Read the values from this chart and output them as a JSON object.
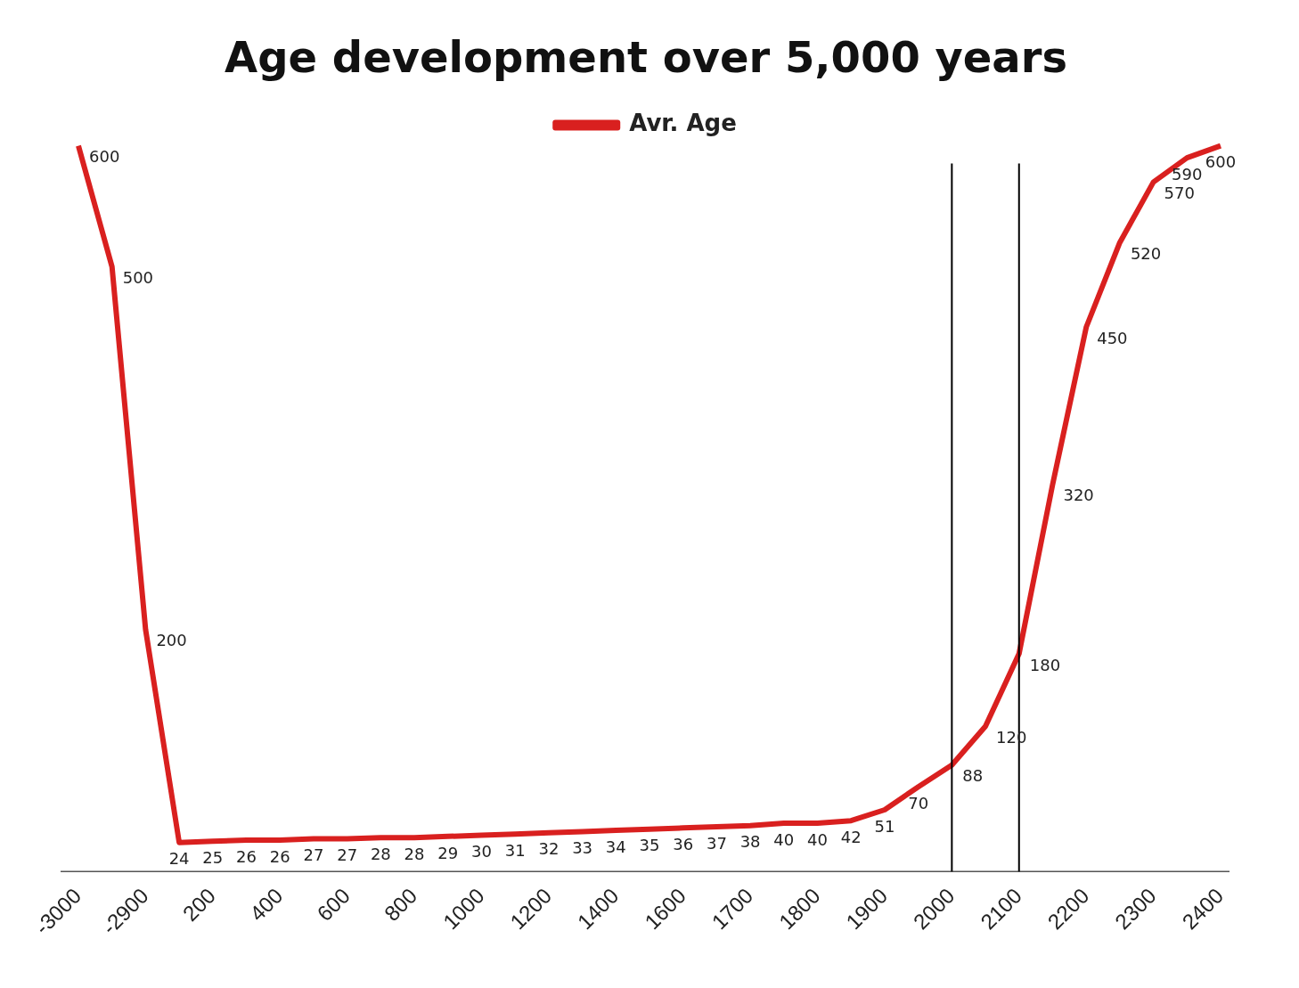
{
  "chart_data": {
    "type": "line",
    "title": "Age development over 5,000 years",
    "categories": [
      "-3000",
      null,
      "-2900",
      null,
      "200",
      null,
      "400",
      null,
      "600",
      null,
      "800",
      null,
      "1000",
      null,
      "1200",
      null,
      "1400",
      null,
      "1600",
      null,
      "1700",
      null,
      "1800",
      null,
      "1900",
      null,
      "2000",
      null,
      "2100",
      null,
      "2200",
      null,
      "2300",
      null,
      "2400"
    ],
    "series": [
      {
        "name": "Avr. Age",
        "color": "#d9201f",
        "values": [
          600,
          500,
          200,
          24,
          25,
          26,
          26,
          27,
          27,
          28,
          28,
          29,
          30,
          31,
          32,
          33,
          34,
          35,
          36,
          37,
          38,
          40,
          40,
          42,
          51,
          70,
          88,
          120,
          180,
          320,
          450,
          520,
          570,
          590,
          600
        ]
      }
    ],
    "relative": false,
    "data_labels": true,
    "legend": "top",
    "grid": false,
    "marker": "none",
    "line_style": "solid",
    "ref_lines": [
      {
        "axis": "x",
        "value": "2000",
        "color": "#000000"
      },
      {
        "axis": "x",
        "value": "2100",
        "color": "#000000"
      }
    ]
  }
}
